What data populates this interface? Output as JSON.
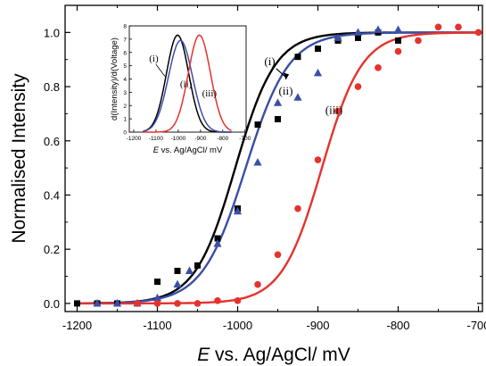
{
  "chart_data": [
    {
      "type": "scatter",
      "xlabel_italic": "E",
      "xlabel_rest": " vs. Ag/AgCl/ mV",
      "ylabel": "Normalised Intensity",
      "xlim": [
        -1215,
        -695
      ],
      "ylim": [
        -0.03,
        1.1
      ],
      "xticks": [
        -1200,
        -1100,
        -1000,
        -900,
        -800,
        -700
      ],
      "yticks": [
        0.0,
        0.2,
        0.4,
        0.6,
        0.8,
        1.0
      ],
      "ytick_labels": [
        "0.0",
        "0.2",
        "0.4",
        "0.6",
        "0.8",
        "1.0"
      ],
      "grid": false,
      "series": [
        {
          "name": "(i)",
          "color": "#000000",
          "marker": "square",
          "fit": {
            "model": "boltzmann",
            "x0": -1003,
            "width": 25
          },
          "points": [
            {
              "x": -1200,
              "y": 0.0
            },
            {
              "x": -1175,
              "y": 0.0
            },
            {
              "x": -1150,
              "y": 0.0
            },
            {
              "x": -1100,
              "y": 0.08
            },
            {
              "x": -1075,
              "y": 0.12
            },
            {
              "x": -1050,
              "y": 0.14
            },
            {
              "x": -1025,
              "y": 0.24
            },
            {
              "x": -1000,
              "y": 0.35
            },
            {
              "x": -975,
              "y": 0.66
            },
            {
              "x": -950,
              "y": 0.68
            },
            {
              "x": -925,
              "y": 0.91
            },
            {
              "x": -900,
              "y": 0.94
            },
            {
              "x": -875,
              "y": 0.97
            },
            {
              "x": -850,
              "y": 0.98
            },
            {
              "x": -825,
              "y": 1.0
            },
            {
              "x": -800,
              "y": 0.97
            }
          ]
        },
        {
          "name": "(ii)",
          "color": "#3a4fa6",
          "marker": "triangle",
          "fit": {
            "model": "boltzmann",
            "x0": -990,
            "width": 27
          },
          "points": [
            {
              "x": -1175,
              "y": 0.0
            },
            {
              "x": -1150,
              "y": 0.0
            },
            {
              "x": -1125,
              "y": 0.0
            },
            {
              "x": -1100,
              "y": 0.02
            },
            {
              "x": -1075,
              "y": 0.07
            },
            {
              "x": -1060,
              "y": 0.12
            },
            {
              "x": -1025,
              "y": 0.22
            },
            {
              "x": -1000,
              "y": 0.34
            },
            {
              "x": -975,
              "y": 0.52
            },
            {
              "x": -950,
              "y": 0.74
            },
            {
              "x": -925,
              "y": 0.76
            },
            {
              "x": -900,
              "y": 0.85
            },
            {
              "x": -875,
              "y": 0.98
            },
            {
              "x": -850,
              "y": 1.0
            },
            {
              "x": -825,
              "y": 1.01
            },
            {
              "x": -800,
              "y": 1.01
            }
          ]
        },
        {
          "name": "(iii)",
          "color": "#e5322d",
          "marker": "circle",
          "fit": {
            "model": "boltzmann",
            "x0": -895,
            "width": 25
          },
          "points": [
            {
              "x": -1125,
              "y": 0.0
            },
            {
              "x": -1100,
              "y": 0.0
            },
            {
              "x": -1075,
              "y": 0.0
            },
            {
              "x": -1050,
              "y": 0.0
            },
            {
              "x": -1025,
              "y": 0.01
            },
            {
              "x": -1000,
              "y": 0.01
            },
            {
              "x": -975,
              "y": 0.07
            },
            {
              "x": -950,
              "y": 0.18
            },
            {
              "x": -925,
              "y": 0.35
            },
            {
              "x": -900,
              "y": 0.53
            },
            {
              "x": -875,
              "y": 0.71
            },
            {
              "x": -850,
              "y": 0.8
            },
            {
              "x": -825,
              "y": 0.87
            },
            {
              "x": -800,
              "y": 0.93
            },
            {
              "x": -775,
              "y": 0.97
            },
            {
              "x": -750,
              "y": 1.02
            },
            {
              "x": -725,
              "y": 1.02
            },
            {
              "x": -700,
              "y": 1.0
            }
          ]
        }
      ],
      "annotations": [
        {
          "text": "(i)",
          "x": -960,
          "y": 0.88
        },
        {
          "text": "(ii)",
          "x": -940,
          "y": 0.77
        },
        {
          "text": "(iii)",
          "x": -880,
          "y": 0.7
        }
      ]
    },
    {
      "type": "line",
      "role": "inset",
      "ylabel": "d(Intensity)/d(Voltage)",
      "xlabel_italic": "E",
      "xlabel_rest": " vs. Ag/AgCl/ mV",
      "xlim": [
        -1220,
        -695
      ],
      "ylim": [
        0,
        8
      ],
      "xticks": [
        -1200,
        -1100,
        -1000,
        -900,
        -800,
        -700
      ],
      "yticks": [
        0,
        1,
        2,
        3,
        4,
        5,
        6,
        7,
        8
      ],
      "series": [
        {
          "name": "(i)",
          "color": "#000000",
          "model": "gaussian",
          "center": -1003,
          "peak": 7.3,
          "sigma": 50
        },
        {
          "name": "(ii)",
          "color": "#3a4fa6",
          "model": "gaussian",
          "center": -990,
          "peak": 6.9,
          "sigma": 54
        },
        {
          "name": "(iii)",
          "color": "#e5322d",
          "model": "gaussian",
          "center": -905,
          "peak": 7.3,
          "sigma": 50
        }
      ],
      "annotations": [
        {
          "text": "(i)",
          "x": -1110,
          "y": 5.3
        },
        {
          "text": "(ii)",
          "x": -965,
          "y": 3.4
        },
        {
          "text": "(iii)",
          "x": -860,
          "y": 2.7
        }
      ]
    }
  ]
}
